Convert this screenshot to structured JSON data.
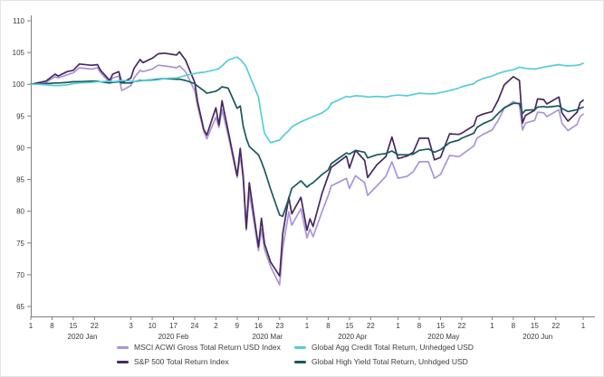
{
  "chart_data": {
    "type": "line",
    "title": "",
    "xlabel": "",
    "ylabel": "",
    "grid": false,
    "legend_position": "bottom",
    "axis_color": "#7f7f7f",
    "tick_text_color": "#383838",
    "ylim": [
      65,
      110
    ],
    "y_ticks": [
      "110",
      "105",
      "100",
      "95",
      "90",
      "85",
      "80",
      "75",
      "70",
      "65"
    ],
    "x_unit": "days since 2020-01-01",
    "x_ticks": [
      {
        "day": 0,
        "label": "1"
      },
      {
        "day": 7,
        "label": "8"
      },
      {
        "day": 14,
        "label": "15"
      },
      {
        "day": 21,
        "label": "22"
      },
      {
        "day": 33,
        "label": "3"
      },
      {
        "day": 40,
        "label": "10"
      },
      {
        "day": 47,
        "label": "17"
      },
      {
        "day": 54,
        "label": "24"
      },
      {
        "day": 61,
        "label": "2"
      },
      {
        "day": 68,
        "label": "9"
      },
      {
        "day": 75,
        "label": "16"
      },
      {
        "day": 82,
        "label": "23"
      },
      {
        "day": 91,
        "label": "1"
      },
      {
        "day": 98,
        "label": "8"
      },
      {
        "day": 105,
        "label": "15"
      },
      {
        "day": 112,
        "label": "22"
      },
      {
        "day": 121,
        "label": "1"
      },
      {
        "day": 128,
        "label": "8"
      },
      {
        "day": 135,
        "label": "15"
      },
      {
        "day": 142,
        "label": "22"
      },
      {
        "day": 152,
        "label": "1"
      },
      {
        "day": 159,
        "label": "8"
      },
      {
        "day": 166,
        "label": "15"
      },
      {
        "day": 173,
        "label": "22"
      },
      {
        "day": 182,
        "label": "1"
      }
    ],
    "month_labels": [
      {
        "day": 17,
        "label": "2020 Jan"
      },
      {
        "day": 47,
        "label": "2020 Feb"
      },
      {
        "day": 78,
        "label": "2020 Mar"
      },
      {
        "day": 106,
        "label": "2020 Apr"
      },
      {
        "day": 136,
        "label": "2020 May"
      },
      {
        "day": 167,
        "label": "2020 Jun"
      }
    ],
    "x": [
      0,
      2,
      5,
      8,
      9,
      12,
      14,
      16,
      20,
      22,
      23,
      26,
      27,
      29,
      30,
      33,
      34,
      36,
      37,
      40,
      42,
      44,
      48,
      49,
      51,
      54,
      55,
      57,
      58,
      61,
      62,
      63,
      65,
      68,
      69,
      70,
      71,
      72,
      75,
      76,
      77,
      79,
      82,
      83,
      85,
      86,
      89,
      91,
      92,
      93,
      96,
      98,
      99,
      104,
      105,
      107,
      110,
      111,
      114,
      117,
      119,
      121,
      124,
      126,
      128,
      131,
      133,
      135,
      138,
      141,
      142,
      146,
      147,
      149,
      152,
      154,
      156,
      159,
      161,
      162,
      163,
      166,
      167,
      169,
      170,
      174,
      175,
      177,
      180,
      181,
      182
    ],
    "series": [
      {
        "name": "MSCI ACWI Gross Total Return USD Index",
        "color": "#ab94d9",
        "values": [
          100,
          100.1,
          100.3,
          101.2,
          101,
          101.5,
          101.8,
          102.6,
          102.4,
          102.6,
          101.8,
          100.3,
          101,
          101.3,
          99,
          99.8,
          101,
          102.2,
          102,
          102.4,
          103,
          102.9,
          102.6,
          102.9,
          102,
          99,
          96.5,
          92.6,
          91.4,
          94.8,
          93.2,
          96,
          92,
          85.3,
          88.8,
          85,
          77,
          83,
          73.8,
          77.2,
          74,
          71.3,
          68.4,
          74.1,
          79.9,
          77.8,
          80.4,
          75.8,
          77.2,
          76,
          80,
          82.5,
          84,
          85.2,
          83.6,
          85.6,
          84.5,
          82.5,
          84,
          85.5,
          87.8,
          85.2,
          85.5,
          86.2,
          87.8,
          87.8,
          85.2,
          85.8,
          88.8,
          88.6,
          88.9,
          90.3,
          91.5,
          92.1,
          92.8,
          94.3,
          96.2,
          97.3,
          96.8,
          92.8,
          93.9,
          94.3,
          95.6,
          95.5,
          94.9,
          96,
          93.9,
          92.7,
          93.7,
          94.9,
          95.3
        ]
      },
      {
        "name": "S&P 500 Total Return Index",
        "color": "#46285f",
        "values": [
          100,
          100.2,
          100.5,
          101.6,
          101.3,
          102,
          102.2,
          103.2,
          103,
          103.1,
          102.2,
          100.6,
          101.6,
          102,
          100.2,
          101,
          102.5,
          103.9,
          103.4,
          104.1,
          104.8,
          104.9,
          104.6,
          105.1,
          103.8,
          100.3,
          97.2,
          92.9,
          92,
          96.3,
          93.6,
          97.4,
          92.7,
          85.6,
          89.9,
          85.5,
          77.3,
          84.5,
          74.4,
          78.9,
          74.9,
          72,
          69.8,
          76.4,
          82.2,
          79.6,
          82.2,
          77,
          78.8,
          77.6,
          82.9,
          85.6,
          86.9,
          88.7,
          86.8,
          89.6,
          88,
          85.3,
          87.3,
          88.6,
          91.7,
          88.3,
          88.7,
          89.3,
          91.5,
          91.5,
          88.1,
          88.5,
          92.2,
          92.1,
          92.3,
          93.5,
          94.9,
          95.3,
          95.7,
          97.5,
          99.9,
          101.2,
          100.6,
          93.9,
          95.1,
          95.9,
          97.7,
          97.6,
          96.9,
          98,
          95.5,
          94.2,
          95.6,
          97.1,
          97.5
        ]
      },
      {
        "name": "Global Agg Credit Total Return, Unhedged USD",
        "color": "#56cdd8",
        "values": [
          100,
          100,
          99.9,
          99.8,
          99.8,
          99.9,
          100.1,
          100.2,
          100.3,
          100.4,
          100.4,
          100.5,
          100.4,
          100.5,
          100.6,
          100.5,
          100.4,
          100.5,
          100.6,
          100.6,
          100.7,
          100.9,
          101,
          101.1,
          101.4,
          101.7,
          101.8,
          101.9,
          102,
          102.3,
          102.5,
          102.9,
          103.8,
          104.3,
          103.9,
          103.4,
          102.7,
          101.5,
          98,
          95,
          92.3,
          90.8,
          91.2,
          91.8,
          92.7,
          93.3,
          94.1,
          94.5,
          94.7,
          94.9,
          95.5,
          96.2,
          97,
          98.1,
          98,
          98.2,
          98.1,
          98,
          98.1,
          98,
          98.2,
          98.3,
          98.2,
          98.4,
          98.6,
          98.5,
          98.5,
          98.7,
          99,
          99.4,
          99.6,
          100.1,
          100.5,
          100.9,
          101.3,
          101.7,
          102,
          102.3,
          102.7,
          102.6,
          102.5,
          102.4,
          102.5,
          102.7,
          102.8,
          103.1,
          103,
          102.9,
          103,
          103.1,
          103.3
        ]
      },
      {
        "name": "Global High Yield Total Return, Unhdged USD",
        "color": "#17585c",
        "values": [
          100,
          100,
          100.1,
          100.2,
          100.2,
          100.3,
          100.4,
          100.4,
          100.5,
          100.5,
          100.4,
          100.2,
          100.3,
          100.4,
          100.2,
          100.2,
          100.4,
          100.6,
          100.6,
          100.7,
          100.8,
          100.9,
          100.8,
          100.8,
          100.6,
          100.1,
          99.7,
          99,
          98.6,
          98.9,
          99.2,
          99.6,
          99.4,
          96.2,
          96.6,
          93.4,
          91.5,
          90.2,
          88.9,
          87.8,
          86.5,
          83.5,
          79.4,
          79.2,
          82,
          83.6,
          84.8,
          83.8,
          84.2,
          84.5,
          85.8,
          86.5,
          87.5,
          89.2,
          89,
          89.6,
          89.3,
          88.4,
          88.9,
          89.1,
          89.5,
          88.9,
          88.9,
          89,
          89.6,
          89.8,
          89.3,
          89.7,
          90.8,
          91.2,
          91.5,
          92.3,
          93.2,
          93.8,
          94.4,
          95.4,
          96.3,
          97,
          97,
          95.4,
          95.9,
          96,
          96.4,
          96.5,
          96.4,
          96.6,
          96.2,
          95.7,
          96,
          96.2,
          96.4
        ]
      }
    ]
  }
}
